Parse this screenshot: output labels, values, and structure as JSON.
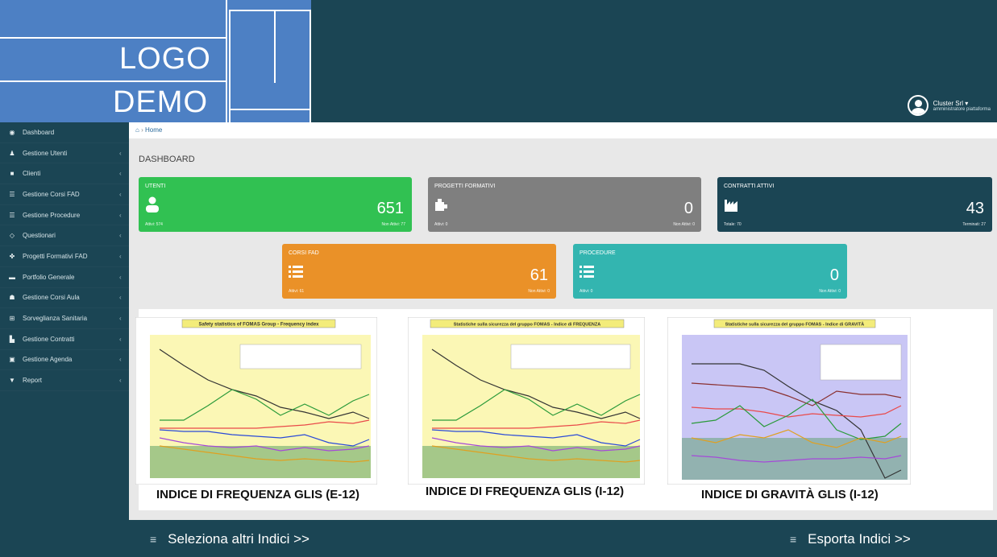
{
  "logo": {
    "line1": "LOGO",
    "line2": "DEMO"
  },
  "user": {
    "name": "Cluster Srl",
    "role": "amministratore piattaforma",
    "caret": "▾"
  },
  "colors": {
    "header": "#1b4554",
    "logo_bg": "#4d80c4",
    "green": "#31c152",
    "gray": "#7f7f7f",
    "teal_dark": "#1b4554",
    "orange": "#ea9128",
    "teal": "#33b5b0"
  },
  "sidebar": {
    "items": [
      {
        "icon": "dashboard-icon",
        "glyph": "◉",
        "label": "Dashboard",
        "arrow": ""
      },
      {
        "icon": "user-icon",
        "glyph": "♟",
        "label": "Gestione Utenti",
        "arrow": "‹"
      },
      {
        "icon": "briefcase-icon",
        "glyph": "■",
        "label": "Clienti",
        "arrow": "‹"
      },
      {
        "icon": "list-icon",
        "glyph": "☰",
        "label": "Gestione Corsi FAD",
        "arrow": "‹"
      },
      {
        "icon": "list-icon",
        "glyph": "☰",
        "label": "Gestione Procedure",
        "arrow": "‹"
      },
      {
        "icon": "diamond-icon",
        "glyph": "◇",
        "label": "Questionari",
        "arrow": "‹"
      },
      {
        "icon": "puzzle-icon",
        "glyph": "✤",
        "label": "Progetti Formativi FAD",
        "arrow": "‹"
      },
      {
        "icon": "folder-icon",
        "glyph": "▬",
        "label": "Portfolio Generale",
        "arrow": "‹"
      },
      {
        "icon": "users-icon",
        "glyph": "☗",
        "label": "Gestione Corsi Aula",
        "arrow": "‹"
      },
      {
        "icon": "plus-square-icon",
        "glyph": "⊞",
        "label": "Sorveglianza Sanitaria",
        "arrow": "‹"
      },
      {
        "icon": "factory-icon",
        "glyph": "▙",
        "label": "Gestione Contratti",
        "arrow": "‹"
      },
      {
        "icon": "book-icon",
        "glyph": "▣",
        "label": "Gestione Agenda",
        "arrow": "‹"
      },
      {
        "icon": "filter-icon",
        "glyph": "▼",
        "label": "Report",
        "arrow": "‹"
      }
    ]
  },
  "breadcrumb": {
    "home_icon": "home-icon",
    "glyph": "⌂",
    "sep": "›",
    "label": "Home"
  },
  "page_title": "DASHBOARD",
  "tiles": {
    "utenti": {
      "title": "UTENTI",
      "value": "651",
      "foot_left": "Attivi: 574",
      "foot_right": "Non Attivi: 77",
      "icon": "user-icon"
    },
    "progetti": {
      "title": "PROGETTI FORMATIVI",
      "value": "0",
      "foot_left": "Attivi: 0",
      "foot_right": "Non Attivi: 0",
      "icon": "puzzle-icon"
    },
    "contratti": {
      "title": "CONTRATTI ATTIVI",
      "value": "43",
      "foot_left": "Totale: 70",
      "foot_right": "Terminati: 27",
      "icon": "factory-icon"
    },
    "corsi": {
      "title": "CORSI FAD",
      "value": "61",
      "foot_left": "Attivi: 61",
      "foot_right": "Non Attivi: 0",
      "icon": "list-icon"
    },
    "procedure": {
      "title": "PROCEDURE",
      "value": "0",
      "foot_left": "Attivi: 0",
      "foot_right": "Non Attivi: 0",
      "icon": "list-icon"
    }
  },
  "charts": [
    {
      "caption": "INDICE DI FREQUENZA  GLIS (E-12)",
      "bg": "#fbf7b5",
      "header": "Safety statistics of FOMAS Group - Frequency index"
    },
    {
      "caption": "INDICE DI FREQUENZA GLIS (I-12)",
      "bg": "#fbf7b5",
      "header": "Statistiche sulla sicurezza del gruppo FOMAS - Indice di FREQUENZA"
    },
    {
      "caption": "INDICE DI GRAVITÀ GLIS (I-12)",
      "bg": "#c9c6f5",
      "header": "Statistiche sulla sicurezza del gruppo FOMAS - Indice di GRAVITÀ"
    }
  ],
  "footer": {
    "left_icon": "menu-icon",
    "left_glyph": "≡",
    "left_label": "Seleziona altri Indici >>",
    "right_icon": "menu-icon",
    "right_glyph": "≡",
    "right_label": "Esporta Indici >>"
  }
}
